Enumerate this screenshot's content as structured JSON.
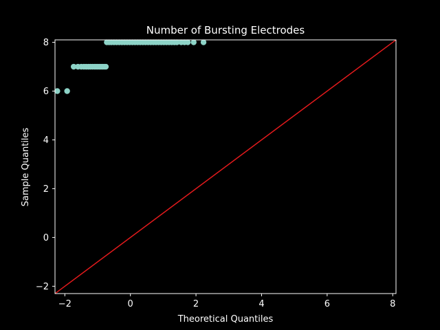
{
  "chart_data": {
    "type": "scatter",
    "title": "Number of Bursting Electrodes",
    "xlabel": "Theoretical Quantiles",
    "ylabel": "Sample Quantiles",
    "xlim": [
      -2.3,
      8.1
    ],
    "ylim": [
      -2.3,
      8.1
    ],
    "xticks": [
      -2,
      0,
      2,
      4,
      6,
      8
    ],
    "yticks": [
      -2,
      0,
      2,
      4,
      6,
      8
    ],
    "grid": false,
    "background": "#000000",
    "foreground": "#ffffff",
    "colors": {
      "points": "#8dd3c7",
      "reference_line": "#e41a1c"
    },
    "reference_line": {
      "x": [
        -2.3,
        8.1
      ],
      "y": [
        -2.3,
        8.1
      ]
    },
    "series": [
      {
        "x": [
          -2.23,
          -1.93,
          -1.73,
          -1.6,
          -1.5,
          -1.42,
          -1.35,
          -1.28,
          -1.22,
          -1.16,
          -1.1,
          -1.05,
          -1.0,
          -0.95,
          -0.9,
          -0.85,
          -0.8,
          -0.75,
          -0.72,
          -0.65,
          -0.58,
          -0.5,
          -0.42,
          -0.34,
          -0.26,
          -0.18,
          -0.1,
          -0.02,
          0.06,
          0.14,
          0.22,
          0.3,
          0.38,
          0.46,
          0.54,
          0.62,
          0.7,
          0.78,
          0.86,
          0.94,
          1.02,
          1.1,
          1.18,
          1.26,
          1.34,
          1.42,
          1.55,
          1.65,
          1.75,
          1.93,
          2.23
        ],
        "y": [
          6,
          6,
          7,
          7,
          7,
          7,
          7,
          7,
          7,
          7,
          7,
          7,
          7,
          7,
          7,
          7,
          7,
          7,
          8,
          8,
          8,
          8,
          8,
          8,
          8,
          8,
          8,
          8,
          8,
          8,
          8,
          8,
          8,
          8,
          8,
          8,
          8,
          8,
          8,
          8,
          8,
          8,
          8,
          8,
          8,
          8,
          8,
          8,
          8,
          8,
          8
        ]
      }
    ]
  }
}
